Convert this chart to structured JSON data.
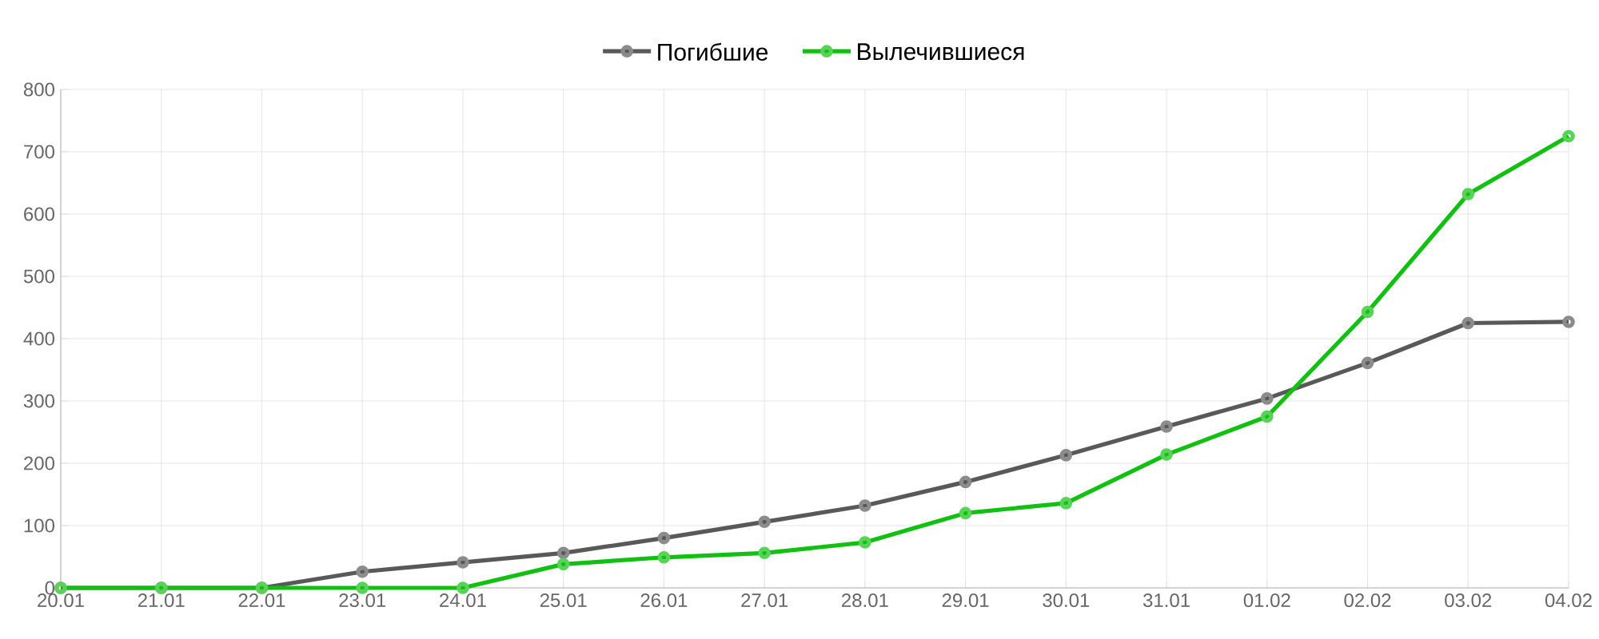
{
  "chart_data": {
    "type": "line",
    "categories": [
      "20.01",
      "21.01",
      "22.01",
      "23.01",
      "24.01",
      "25.01",
      "26.01",
      "27.01",
      "28.01",
      "29.01",
      "30.01",
      "31.01",
      "01.02",
      "02.02",
      "03.02",
      "04.02"
    ],
    "series": [
      {
        "name": "Погибшие",
        "color": "#595959",
        "values": [
          0,
          0,
          0,
          26,
          41,
          56,
          80,
          106,
          132,
          170,
          213,
          259,
          304,
          361,
          425,
          427
        ]
      },
      {
        "name": "Вылечившиеся",
        "color": "#11c011",
        "values": [
          0,
          0,
          0,
          0,
          0,
          38,
          49,
          56,
          73,
          120,
          136,
          214,
          275,
          443,
          632,
          725
        ]
      }
    ],
    "ylim": [
      0,
      800
    ],
    "yticks": [
      0,
      100,
      200,
      300,
      400,
      500,
      600,
      700,
      800
    ],
    "grid": true,
    "legend": "top",
    "marker": "circle",
    "line_style": "solid"
  }
}
